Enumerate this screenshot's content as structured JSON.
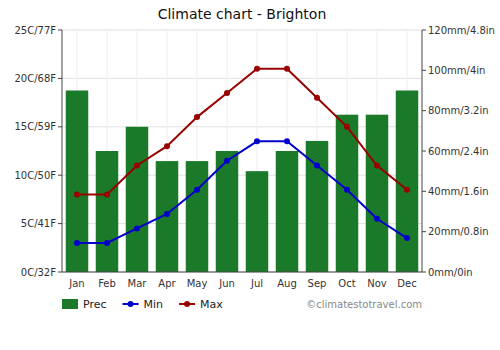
{
  "chart_data": {
    "type": "bar",
    "title": "Climate chart - Brighton",
    "categories": [
      "Jan",
      "Feb",
      "Mar",
      "Apr",
      "May",
      "Jun",
      "Jul",
      "Aug",
      "Sep",
      "Oct",
      "Nov",
      "Dec"
    ],
    "series": [
      {
        "name": "Prec",
        "type": "bar",
        "axis": "y2",
        "color": "#1a7a2a",
        "values": [
          90,
          60,
          72,
          55,
          55,
          60,
          50,
          60,
          65,
          78,
          78,
          90
        ]
      },
      {
        "name": "Min",
        "type": "line",
        "color": "#0000cc",
        "marker": "circle",
        "line_style": "solid",
        "values": [
          3,
          3,
          4.5,
          6,
          8.5,
          11.5,
          13.5,
          13.5,
          11,
          8.5,
          5.5,
          3.5
        ]
      },
      {
        "name": "Max",
        "type": "line",
        "color": "#990000",
        "marker": "circle",
        "line_style": "solid",
        "values": [
          8,
          8,
          11,
          13,
          16,
          18.5,
          21,
          21,
          18,
          15,
          11,
          8.5
        ]
      }
    ],
    "ylim": [
      0,
      25
    ],
    "yticks": [
      {
        "value": 0,
        "label": "0C/32F"
      },
      {
        "value": 5,
        "label": "5C/41F"
      },
      {
        "value": 10,
        "label": "10C/50F"
      },
      {
        "value": 15,
        "label": "15C/59F"
      },
      {
        "value": 20,
        "label": "20C/68F"
      },
      {
        "value": 25,
        "label": "25C/77F"
      }
    ],
    "y2lim": [
      0,
      120
    ],
    "y2ticks": [
      {
        "value": 0,
        "label": "0mm/0in"
      },
      {
        "value": 20,
        "label": "20mm/0.8in"
      },
      {
        "value": 40,
        "label": "40mm/1.6in"
      },
      {
        "value": 60,
        "label": "60mm/2.4in"
      },
      {
        "value": 80,
        "label": "80mm/3.2in"
      },
      {
        "value": 100,
        "label": "100mm/4in"
      },
      {
        "value": 120,
        "label": "120mm/4.8in"
      }
    ],
    "grid": true,
    "legend": "lower left",
    "annotations": [
      {
        "text": "©climatestotravel.com"
      }
    ]
  }
}
